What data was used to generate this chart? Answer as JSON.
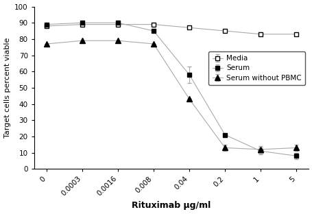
{
  "x_labels": [
    "0",
    "0.0003",
    "0.0016",
    "0.008",
    "0.04",
    "0.2",
    "1",
    "5"
  ],
  "x_positions": [
    0,
    1,
    2,
    3,
    4,
    5,
    6,
    7
  ],
  "media_y": [
    88,
    89,
    89,
    89,
    87,
    85,
    83,
    83
  ],
  "media_err": [
    0,
    0,
    0,
    0,
    0,
    0,
    0,
    0
  ],
  "serum_y": [
    89,
    90,
    90,
    85,
    58,
    21,
    11,
    8
  ],
  "serum_err": [
    0,
    0,
    0,
    0,
    5,
    0,
    2,
    2
  ],
  "serum_nopbmc_y": [
    77,
    79,
    79,
    77,
    43,
    13,
    12,
    13
  ],
  "serum_nopbmc_err": [
    0,
    0,
    0,
    0,
    0,
    2,
    2,
    2
  ],
  "ylabel": "Target cells percent viable",
  "xlabel": "Rituximab μg/ml",
  "ylim": [
    0,
    100
  ],
  "yticks": [
    0,
    10,
    20,
    30,
    40,
    50,
    60,
    70,
    80,
    90,
    100
  ],
  "legend_labels": [
    "Media",
    "Serum",
    "Serum without PBMC"
  ],
  "gray_color": "#aaaaaa",
  "black_color": "#000000",
  "white_color": "#ffffff",
  "background_color": "#ffffff"
}
